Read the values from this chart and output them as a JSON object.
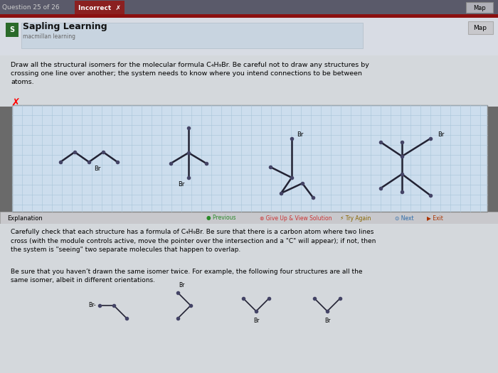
{
  "bg_outer": "#6a6a6a",
  "bg_header_bar": "#5a5a6a",
  "bg_red_stripe": "#8b1010",
  "bg_sapling_area": "#d8dce4",
  "bg_content": "#d4d8dc",
  "bg_grid": "#ccdded",
  "grid_line_color": "#a8c4d8",
  "tab_bg": "#8b2020",
  "nav_bar_bg": "#c8c8cc",
  "bottom_text_bg": "#d4d8dc",
  "title_text": "Sapling Learning",
  "subtitle_text": "macmillan learning",
  "question_text": "Draw all the structural isomers for the molecular formula C₄H₉Br. Be careful not to draw any structures by\ncrossing one line over another; the system needs to know where you intend connections to be between\natoms.",
  "explanation_label": "Explanation",
  "nav_labels": [
    "Previous",
    "Give Up & View Solution",
    "Try Again",
    "Next",
    "Exit"
  ],
  "nav_colors": [
    "#2a8a2a",
    "#cc3333",
    "#886600",
    "#2a6aaa",
    "#aa3300"
  ],
  "bottom_text1": "Carefully check that each structure has a formula of C₄H₉Br. Be sure that there is a carbon atom where two lines\ncross (with the module controls active, move the pointer over the intersection and a \"C\" will appear); if not, then\nthe system is \"seeing\" two separate molecules that happen to overlap.",
  "bottom_text2": "Be sure that you haven’t drawn the same isomer twice. For example, the following four structures are all the\nsame isomer, albeit in different orientations.",
  "bond_color": "#222233",
  "dot_color": "#444466",
  "label_fontsize": 6.0,
  "bond_lw": 1.8
}
